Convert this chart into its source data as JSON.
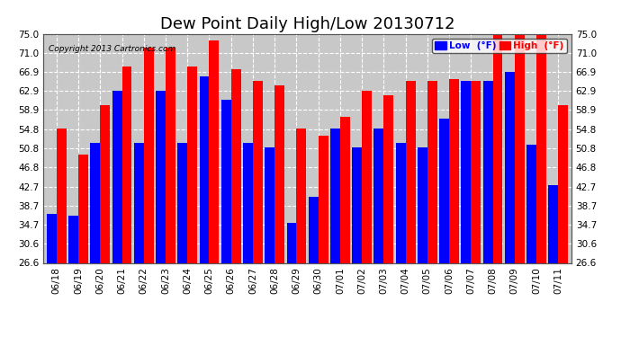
{
  "title": "Dew Point Daily High/Low 20130712",
  "copyright": "Copyright 2013 Cartronics.com",
  "background_color": "#ffffff",
  "plot_bg_color": "#c8c8c8",
  "grid_color": "#ffffff",
  "categories": [
    "06/18",
    "06/19",
    "06/20",
    "06/21",
    "06/22",
    "06/23",
    "06/24",
    "06/25",
    "06/26",
    "06/27",
    "06/28",
    "06/29",
    "06/30",
    "07/01",
    "07/02",
    "07/03",
    "07/04",
    "07/05",
    "07/06",
    "07/07",
    "07/08",
    "07/09",
    "07/10",
    "07/11"
  ],
  "low_values": [
    37.0,
    36.5,
    52.0,
    63.0,
    52.0,
    63.0,
    52.0,
    66.0,
    61.0,
    52.0,
    51.0,
    35.0,
    40.5,
    55.0,
    51.0,
    55.0,
    52.0,
    51.0,
    57.0,
    65.0,
    65.0,
    67.0,
    51.5,
    43.0
  ],
  "high_values": [
    55.0,
    49.5,
    60.0,
    68.0,
    72.0,
    72.0,
    68.0,
    73.5,
    67.5,
    65.0,
    64.0,
    55.0,
    53.5,
    57.5,
    63.0,
    62.0,
    65.0,
    65.0,
    65.5,
    65.0,
    75.0,
    75.0,
    75.0,
    60.0
  ],
  "low_color": "#0000ff",
  "high_color": "#ff0000",
  "yticks": [
    26.6,
    30.6,
    34.7,
    38.7,
    42.7,
    46.8,
    50.8,
    54.8,
    58.9,
    62.9,
    66.9,
    71.0,
    75.0
  ],
  "ymin": 26.6,
  "ymax": 75.0,
  "title_fontsize": 13,
  "tick_fontsize": 7.5,
  "legend_low_label": "Low  (°F)",
  "legend_high_label": "High  (°F)"
}
